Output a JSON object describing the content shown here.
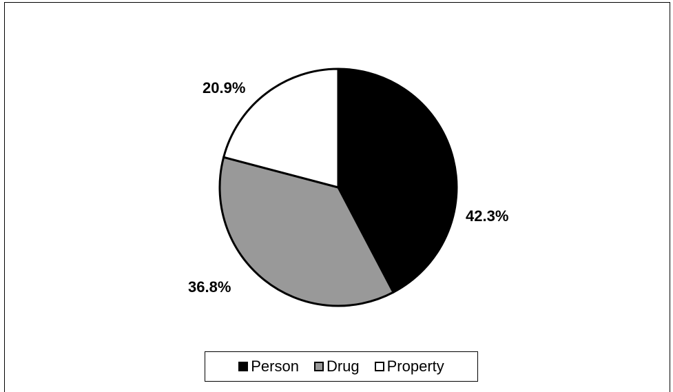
{
  "chart_data": {
    "type": "pie",
    "title": "",
    "slices": [
      {
        "name": "Person",
        "value": 42.3,
        "label": "42.3%",
        "color": "#000000"
      },
      {
        "name": "Drug",
        "value": 36.8,
        "label": "36.8%",
        "color": "#999999"
      },
      {
        "name": "Property",
        "value": 20.9,
        "label": "20.9%",
        "color": "#ffffff"
      }
    ],
    "legend_position": "bottom"
  }
}
